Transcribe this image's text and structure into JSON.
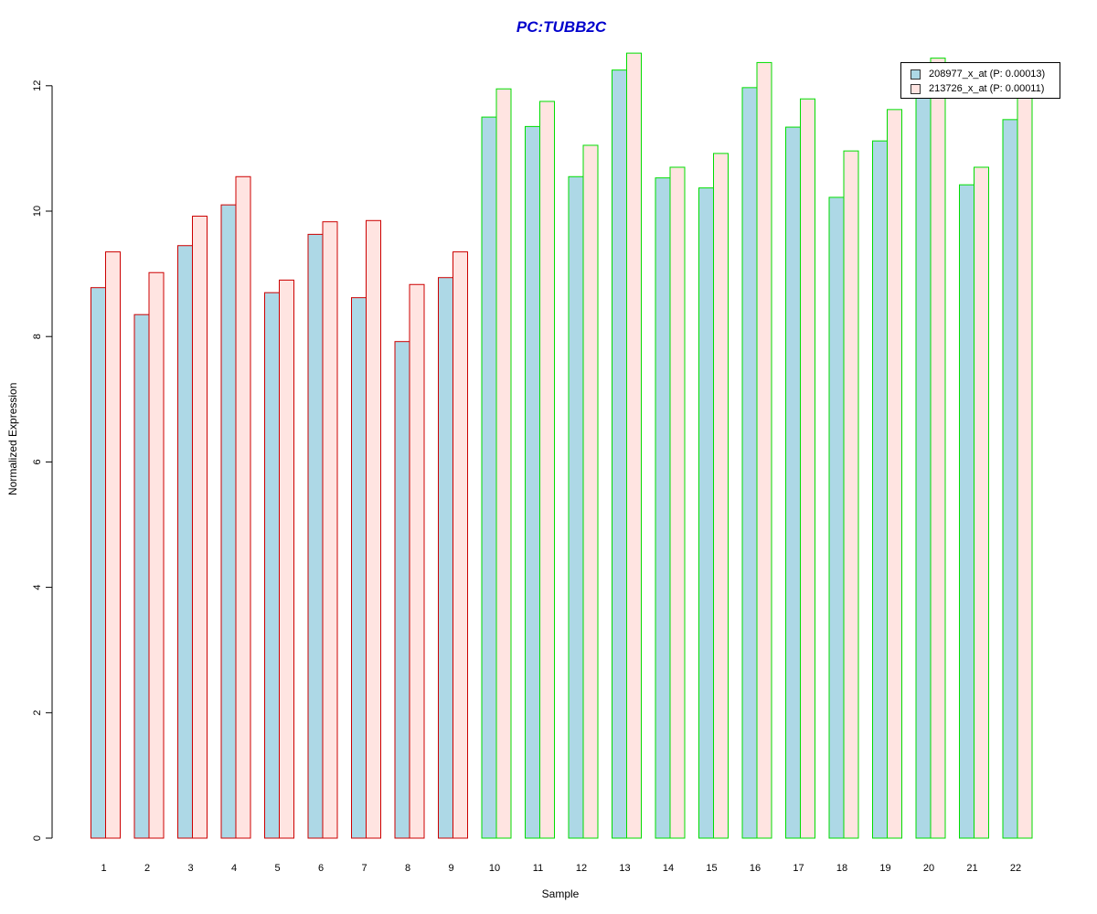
{
  "chart_data": {
    "type": "bar",
    "title": "PC:TUBB2C",
    "xlabel": "Sample",
    "ylabel": "Normalized Expression",
    "ylim": [
      0,
      12.5
    ],
    "yticks": [
      0,
      2,
      4,
      6,
      8,
      10,
      12
    ],
    "categories": [
      "1",
      "2",
      "3",
      "4",
      "5",
      "6",
      "7",
      "8",
      "9",
      "10",
      "11",
      "12",
      "13",
      "14",
      "15",
      "16",
      "17",
      "18",
      "19",
      "20",
      "21",
      "22"
    ],
    "group_colors": [
      "#cc0000",
      "#cc0000",
      "#cc0000",
      "#cc0000",
      "#cc0000",
      "#cc0000",
      "#cc0000",
      "#cc0000",
      "#cc0000",
      "#00dd00",
      "#00dd00",
      "#00dd00",
      "#00dd00",
      "#00dd00",
      "#00dd00",
      "#00dd00",
      "#00dd00",
      "#00dd00",
      "#00dd00",
      "#00dd00",
      "#00dd00",
      "#00dd00"
    ],
    "series": [
      {
        "name": "208977_x_at (P: 0.00013)",
        "fill": "#add8e6",
        "values": [
          8.78,
          8.35,
          9.45,
          10.1,
          8.7,
          9.63,
          8.62,
          7.92,
          8.94,
          11.5,
          11.35,
          10.55,
          12.25,
          10.53,
          10.37,
          11.97,
          11.34,
          10.22,
          11.12,
          11.88,
          10.42,
          11.46
        ]
      },
      {
        "name": "213726_x_at (P: 0.00011)",
        "fill": "#ffe4e1",
        "values": [
          9.35,
          9.02,
          9.92,
          10.55,
          8.9,
          9.83,
          9.85,
          8.83,
          9.35,
          11.95,
          11.75,
          11.05,
          12.52,
          10.7,
          10.92,
          12.37,
          11.79,
          10.96,
          11.62,
          12.44,
          10.7,
          11.82
        ]
      }
    ],
    "legend_position": "top-right",
    "grid": false
  }
}
